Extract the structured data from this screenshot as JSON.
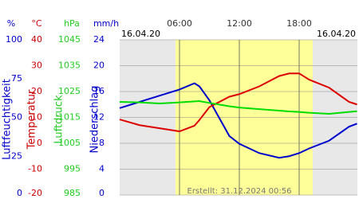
{
  "chart_data": {
    "type": "line",
    "date_left": "16.04.20",
    "date_right": "16.04.20",
    "created": "Erstellt: 31.12.2024 00:56",
    "xlim": [
      0,
      23.84
    ],
    "xticks": [
      {
        "value": 6,
        "label": "06:00"
      },
      {
        "value": 12,
        "label": "12:00"
      },
      {
        "value": 18,
        "label": "18:00"
      }
    ],
    "axes": [
      {
        "unit": "%",
        "title": "Luftfeuchtigkeit",
        "color": "#0000cc",
        "lim": [
          0,
          100
        ],
        "ticks": [
          0,
          25,
          50,
          75,
          100
        ]
      },
      {
        "unit": "°C",
        "title": "Temperatur",
        "color": "#cc0000",
        "lim": [
          -20,
          40
        ],
        "ticks": [
          -20,
          -10,
          0,
          10,
          20,
          30,
          40
        ]
      },
      {
        "unit": "hPa",
        "title": "Luftdruck",
        "color": "#22cc22",
        "lim": [
          985,
          1045
        ],
        "ticks": [
          985,
          995,
          1005,
          1015,
          1025,
          1035,
          1045
        ]
      },
      {
        "unit": "mm/h",
        "title": "Niederschlag",
        "color": "#0000cc",
        "lim": [
          0,
          24
        ],
        "ticks": [
          0,
          4,
          8,
          12,
          16,
          20,
          24
        ]
      }
    ],
    "x": [
      0,
      2,
      4,
      6,
      7.5,
      8,
      9,
      11,
      12,
      14,
      16,
      17,
      18,
      19,
      21,
      23,
      23.8
    ],
    "series": [
      {
        "name": "Luftfeuchtigkeit",
        "axis": 0,
        "color": "#0000cc",
        "values": [
          56,
          60,
          64,
          68,
          72,
          70,
          61,
          38,
          33,
          27,
          24,
          25,
          27,
          30,
          35,
          44,
          46
        ]
      },
      {
        "name": "Temperatur",
        "axis": 1,
        "color": "#dd0000",
        "values": [
          9.2,
          7,
          5.8,
          4.6,
          6.8,
          9,
          14,
          18,
          19,
          22,
          26,
          27,
          27,
          24.6,
          21.5,
          16,
          15
        ]
      },
      {
        "name": "Luftdruck",
        "axis": 2,
        "color": "#00dd00",
        "values": [
          1021,
          1020.8,
          1020.4,
          1020.8,
          1021.2,
          1021.3,
          1020.6,
          1019.3,
          1018.8,
          1018.2,
          1017.6,
          1017.3,
          1017.1,
          1016.8,
          1016.4,
          1017.1,
          1017.4
        ]
      }
    ]
  }
}
